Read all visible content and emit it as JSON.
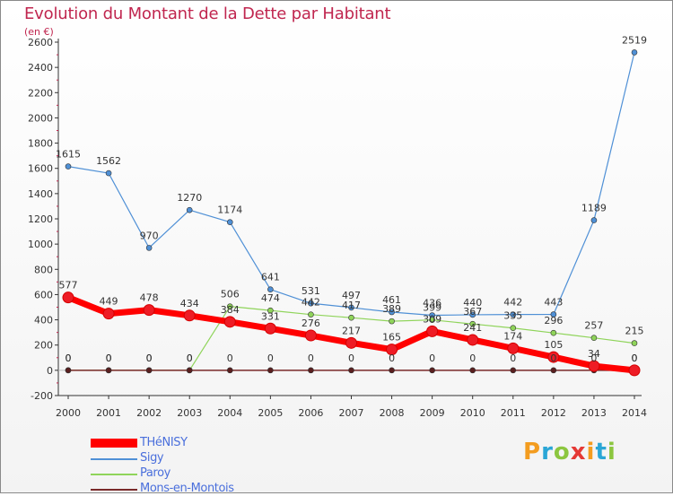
{
  "title": "Evolution du Montant de la Dette par Habitant",
  "unit": "(en €)",
  "logo_text": "Proxiti",
  "logo_colors": [
    "#f39c1f",
    "#2aa6d6",
    "#8cc63f",
    "#e53935",
    "#f39c1f",
    "#2aa6d6",
    "#8cc63f"
  ],
  "chart_data": {
    "type": "line",
    "x": [
      "2000",
      "2001",
      "2002",
      "2003",
      "2004",
      "2005",
      "2006",
      "2007",
      "2008",
      "2009",
      "2010",
      "2011",
      "2012",
      "2013",
      "2014"
    ],
    "ylim": [
      -200,
      2600
    ],
    "yticks": [
      -200,
      0,
      200,
      400,
      600,
      800,
      1000,
      1200,
      1400,
      1600,
      1800,
      2000,
      2200,
      2400,
      2600
    ],
    "grid": false,
    "legend_position": "bottom-left",
    "series": [
      {
        "name": "THéNISY",
        "color": "#ff0000",
        "values": [
          577,
          449,
          478,
          434,
          384,
          331,
          276,
          217,
          165,
          309,
          241,
          174,
          105,
          34,
          0
        ]
      },
      {
        "name": "Sigy",
        "color": "#4f90d6",
        "values": [
          1615,
          1562,
          970,
          1270,
          1174,
          641,
          531,
          497,
          461,
          436,
          440,
          442,
          443,
          1189,
          2519
        ]
      },
      {
        "name": "Paroy",
        "color": "#8fd45a",
        "values": [
          0,
          0,
          0,
          0,
          506,
          474,
          442,
          417,
          389,
          399,
          367,
          335,
          296,
          257,
          215
        ]
      },
      {
        "name": "Mons-en-Montois",
        "color": "#7a2a2a",
        "values": [
          0,
          0,
          0,
          0,
          0,
          0,
          0,
          0,
          0,
          0,
          0,
          0,
          0,
          0,
          0
        ]
      }
    ]
  }
}
